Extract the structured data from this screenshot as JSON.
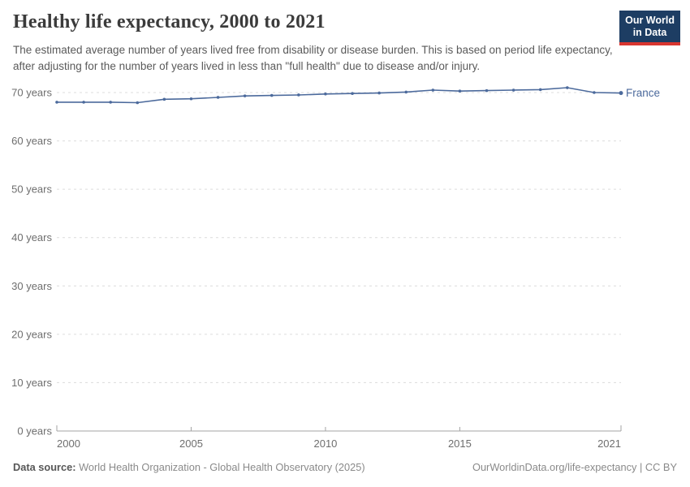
{
  "header": {
    "title": "Healthy life expectancy, 2000 to 2021",
    "subtitle": "The estimated average number of years lived free from disability or disease burden. This is based on period life expectancy, after adjusting for the number of years lived in less than \"full health\" due to disease and/or injury."
  },
  "logo": {
    "line1": "Our World",
    "line2": "in Data",
    "bg_color": "#1d3d63",
    "bar_color": "#d8352f"
  },
  "chart_data": {
    "type": "line",
    "title": "Healthy life expectancy, 2000 to 2021",
    "x": [
      2000,
      2001,
      2002,
      2003,
      2004,
      2005,
      2006,
      2007,
      2008,
      2009,
      2010,
      2011,
      2012,
      2013,
      2014,
      2015,
      2016,
      2017,
      2018,
      2019,
      2020,
      2021
    ],
    "series": [
      {
        "name": "France",
        "color": "#4c6a9c",
        "values": [
          68.0,
          68.0,
          68.0,
          67.9,
          68.6,
          68.7,
          69.0,
          69.3,
          69.4,
          69.5,
          69.7,
          69.8,
          69.9,
          70.1,
          70.5,
          70.3,
          70.4,
          70.5,
          70.6,
          71.0,
          70.0,
          69.9
        ]
      }
    ],
    "xlabel": "",
    "ylabel": "",
    "ylim": [
      0,
      72.4
    ],
    "xlim": [
      2000,
      2021
    ],
    "yticks": [
      0,
      10,
      20,
      30,
      40,
      50,
      60,
      70
    ],
    "ytick_labels": [
      "0 years",
      "10 years",
      "20 years",
      "30 years",
      "40 years",
      "50 years",
      "60 years",
      "70 years"
    ],
    "xticks": [
      2000,
      2005,
      2010,
      2015,
      2021
    ],
    "xtick_labels": [
      "2000",
      "2005",
      "2010",
      "2015",
      "2021"
    ],
    "grid": "horizontal-dashed",
    "legend": "line-end-label",
    "grid_color": "#dcdcdc",
    "axis_color": "#a3a3a3",
    "tick_label_color": "#6e6e6e"
  },
  "footer": {
    "datasource_label": "Data source:",
    "datasource_value": " World Health Organization - Global Health Observatory (2025)",
    "right_text": "OurWorldinData.org/life-expectancy | CC BY"
  }
}
